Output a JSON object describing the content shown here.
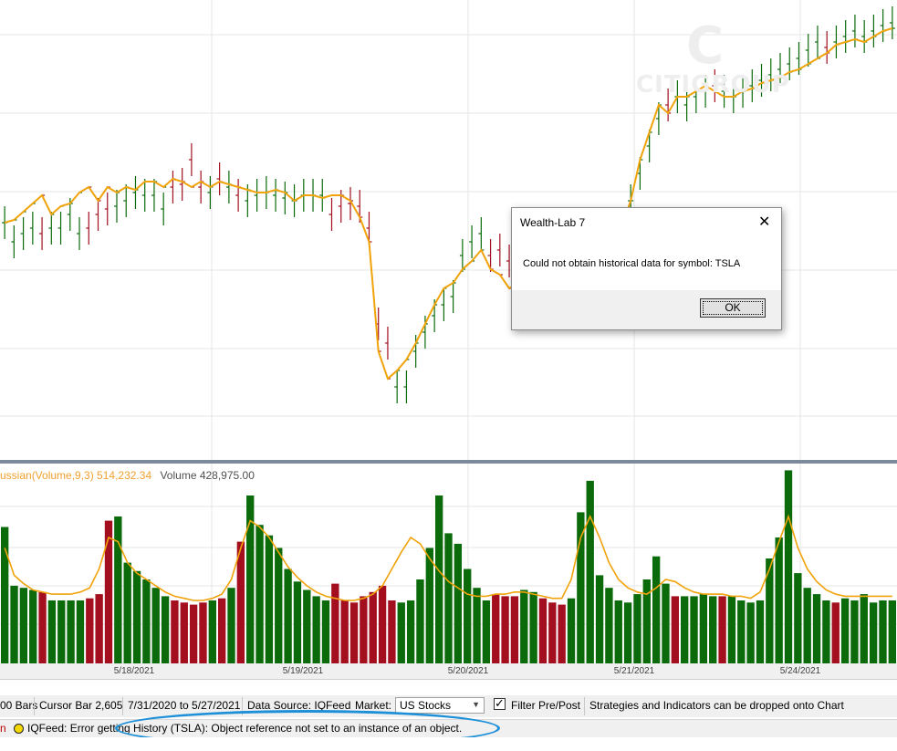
{
  "colors": {
    "up_bar": "#0b6b0b",
    "down_bar": "#a30f1f",
    "smooth_line": "#f0a30a",
    "pane_separator": "#7d8a99",
    "grid": "#e6e6e6",
    "annotation_ellipse": "#1e90d8"
  },
  "watermark": {
    "letter": "C",
    "name": "CITIGROUP"
  },
  "volume_pane": {
    "indicator_label": "ussian(Volume,9,3) 514,232.34",
    "volume_label": "Volume 428,975.00"
  },
  "x_axis": {
    "ticks": [
      "5/18/2021",
      "5/19/2021",
      "5/20/2021",
      "5/21/2021",
      "5/24/2021"
    ]
  },
  "chart_data": {
    "type": "bar",
    "price_bars": [
      {
        "h": 0.22,
        "c": 0.22,
        "up": true
      },
      {
        "h": 0.15,
        "c": 0.23,
        "up": true
      },
      {
        "h": 0.18,
        "c": 0.26,
        "up": true
      },
      {
        "h": 0.2,
        "c": 0.29,
        "up": true
      },
      {
        "h": 0.18,
        "c": 0.32,
        "up": false
      },
      {
        "h": 0.2,
        "c": 0.25,
        "up": true
      },
      {
        "h": 0.2,
        "c": 0.28,
        "up": true
      },
      {
        "h": 0.25,
        "c": 0.29,
        "up": true
      },
      {
        "h": 0.18,
        "c": 0.33,
        "up": true
      },
      {
        "h": 0.2,
        "c": 0.35,
        "up": false
      },
      {
        "h": 0.25,
        "c": 0.3,
        "up": false
      },
      {
        "h": 0.27,
        "c": 0.35,
        "up": false
      },
      {
        "h": 0.28,
        "c": 0.33,
        "up": true
      },
      {
        "h": 0.3,
        "c": 0.35,
        "up": true
      },
      {
        "h": 0.33,
        "c": 0.34,
        "up": true
      },
      {
        "h": 0.32,
        "c": 0.37,
        "up": true
      },
      {
        "h": 0.32,
        "c": 0.37,
        "up": true
      },
      {
        "h": 0.27,
        "c": 0.35,
        "up": true
      },
      {
        "h": 0.35,
        "c": 0.38,
        "up": false
      },
      {
        "h": 0.36,
        "c": 0.37,
        "up": false
      },
      {
        "h": 0.45,
        "c": 0.35,
        "up": false
      },
      {
        "h": 0.35,
        "c": 0.37,
        "up": false
      },
      {
        "h": 0.33,
        "c": 0.35,
        "up": true
      },
      {
        "h": 0.38,
        "c": 0.37,
        "up": false
      },
      {
        "h": 0.35,
        "c": 0.36,
        "up": true
      },
      {
        "h": 0.32,
        "c": 0.35,
        "up": false
      },
      {
        "h": 0.3,
        "c": 0.34,
        "up": true
      },
      {
        "h": 0.32,
        "c": 0.33,
        "up": true
      },
      {
        "h": 0.33,
        "c": 0.33,
        "up": true
      },
      {
        "h": 0.32,
        "c": 0.34,
        "up": true
      },
      {
        "h": 0.31,
        "c": 0.33,
        "up": true
      },
      {
        "h": 0.3,
        "c": 0.3,
        "up": true
      },
      {
        "h": 0.32,
        "c": 0.32,
        "up": true
      },
      {
        "h": 0.32,
        "c": 0.32,
        "up": true
      },
      {
        "h": 0.32,
        "c": 0.31,
        "up": true
      },
      {
        "h": 0.25,
        "c": 0.32,
        "up": false
      },
      {
        "h": 0.28,
        "c": 0.32,
        "up": false
      },
      {
        "h": 0.29,
        "c": 0.3,
        "up": false
      },
      {
        "h": 0.28,
        "c": 0.24,
        "up": false
      },
      {
        "h": 0.2,
        "c": 0.15,
        "up": false
      },
      {
        "h": -0.15,
        "c": -0.25,
        "up": false
      },
      {
        "h": -0.22,
        "c": -0.35,
        "up": false
      },
      {
        "h": -0.38,
        "c": -0.32,
        "up": true
      },
      {
        "h": -0.38,
        "c": -0.28,
        "up": true
      },
      {
        "h": -0.25,
        "c": -0.22,
        "up": true
      },
      {
        "h": -0.18,
        "c": -0.15,
        "up": true
      },
      {
        "h": -0.12,
        "c": -0.08,
        "up": true
      },
      {
        "h": -0.08,
        "c": -0.02,
        "up": true
      },
      {
        "h": -0.05,
        "c": 0.0,
        "up": true
      },
      {
        "h": 0.1,
        "c": 0.05,
        "up": true
      },
      {
        "h": 0.15,
        "c": 0.08,
        "up": true
      },
      {
        "h": 0.18,
        "c": 0.12,
        "up": true
      },
      {
        "h": 0.1,
        "c": 0.05,
        "up": false
      },
      {
        "h": 0.12,
        "c": 0.03,
        "up": false
      },
      {
        "h": 0.08,
        "c": -0.02,
        "up": false
      },
      {
        "h": 0.1,
        "c": 0.0,
        "up": true
      },
      {
        "h": 0.13,
        "c": 0.08,
        "up": true
      },
      {
        "h": 0.15,
        "c": 0.11,
        "up": false
      },
      {
        "h": 0.12,
        "c": 0.04,
        "up": false
      },
      {
        "h": 0.08,
        "c": -0.02,
        "up": false
      },
      {
        "h": 0.02,
        "c": -0.02,
        "up": true
      },
      {
        "h": 0.05,
        "c": 0.02,
        "up": true
      },
      {
        "h": 0.08,
        "c": 0.06,
        "up": true
      },
      {
        "h": 0.1,
        "c": 0.08,
        "up": true
      },
      {
        "h": 0.12,
        "c": 0.1,
        "up": true
      },
      {
        "h": 0.15,
        "c": 0.12,
        "up": true
      },
      {
        "h": 0.2,
        "c": 0.2,
        "up": true
      },
      {
        "h": 0.3,
        "c": 0.3,
        "up": true
      },
      {
        "h": 0.4,
        "c": 0.45,
        "up": true
      },
      {
        "h": 0.5,
        "c": 0.55,
        "up": true
      },
      {
        "h": 0.6,
        "c": 0.65,
        "up": true
      },
      {
        "h": 0.65,
        "c": 0.62,
        "up": false
      },
      {
        "h": 0.68,
        "c": 0.68,
        "up": true
      },
      {
        "h": 0.65,
        "c": 0.68,
        "up": true
      },
      {
        "h": 0.68,
        "c": 0.7,
        "up": true
      },
      {
        "h": 0.7,
        "c": 0.72,
        "up": true
      },
      {
        "h": 0.72,
        "c": 0.7,
        "up": false
      },
      {
        "h": 0.7,
        "c": 0.68,
        "up": true
      },
      {
        "h": 0.68,
        "c": 0.68,
        "up": true
      },
      {
        "h": 0.7,
        "c": 0.7,
        "up": true
      },
      {
        "h": 0.72,
        "c": 0.71,
        "up": true
      },
      {
        "h": 0.74,
        "c": 0.73,
        "up": true
      },
      {
        "h": 0.76,
        "c": 0.74,
        "up": true
      },
      {
        "h": 0.78,
        "c": 0.75,
        "up": true
      },
      {
        "h": 0.8,
        "c": 0.77,
        "up": true
      },
      {
        "h": 0.82,
        "c": 0.78,
        "up": true
      },
      {
        "h": 0.85,
        "c": 0.8,
        "up": true
      },
      {
        "h": 0.88,
        "c": 0.82,
        "up": true
      },
      {
        "h": 0.86,
        "c": 0.84,
        "up": false
      },
      {
        "h": 0.88,
        "c": 0.87,
        "up": true
      },
      {
        "h": 0.9,
        "c": 0.88,
        "up": true
      },
      {
        "h": 0.92,
        "c": 0.89,
        "up": true
      },
      {
        "h": 0.9,
        "c": 0.88,
        "up": true
      },
      {
        "h": 0.92,
        "c": 0.9,
        "up": true
      },
      {
        "h": 0.94,
        "c": 0.92,
        "up": true
      },
      {
        "h": 0.95,
        "c": 0.93,
        "up": true
      }
    ],
    "volume_values": [
      65,
      37,
      36,
      35,
      34,
      30,
      30,
      30,
      30,
      31,
      33,
      68,
      70,
      48,
      44,
      40,
      36,
      32,
      30,
      29,
      28,
      29,
      30,
      31,
      36,
      58,
      80,
      66,
      61,
      55,
      45,
      39,
      35,
      32,
      30,
      38,
      30,
      29,
      32,
      34,
      37,
      30,
      29,
      30,
      40,
      55,
      80,
      62,
      57,
      45,
      36,
      30,
      33,
      32,
      32,
      35,
      34,
      31,
      29,
      28,
      31,
      72,
      87,
      42,
      36,
      30,
      29,
      33,
      40,
      51,
      38,
      32,
      32,
      32,
      33,
      32,
      32,
      32,
      30,
      29,
      30,
      50,
      60,
      92,
      43,
      36,
      33,
      30,
      29,
      31,
      30,
      33,
      29,
      30,
      30
    ],
    "smooth_values": [
      55,
      42,
      38,
      35,
      34,
      33,
      33,
      33,
      34,
      36,
      45,
      60,
      58,
      48,
      43,
      40,
      37,
      34,
      32,
      31,
      30,
      30,
      31,
      33,
      40,
      55,
      68,
      65,
      60,
      53,
      46,
      41,
      37,
      34,
      32,
      31,
      30,
      30,
      31,
      33,
      37,
      45,
      53,
      60,
      57,
      50,
      44,
      39,
      36,
      33,
      32,
      32,
      33,
      33,
      34,
      34,
      33,
      32,
      31,
      31,
      40,
      60,
      70,
      60,
      48,
      40,
      36,
      34,
      33,
      36,
      40,
      39,
      36,
      34,
      33,
      33,
      33,
      32,
      32,
      31,
      34,
      45,
      58,
      70,
      55,
      45,
      39,
      35,
      33,
      32,
      32,
      32,
      32,
      32,
      32
    ]
  },
  "status_bar": {
    "bars": "00 Bars",
    "cursor": "Cursor Bar 2,605",
    "range": "7/31/2020 to 5/27/2021",
    "data_source": "Data Source: IQFeed",
    "market_label": "Market:",
    "market_value": "US Stocks",
    "filter_label": "Filter Pre/Post",
    "filter_checked": "✓",
    "hint": "Strategies and Indicators can be dropped onto Chart"
  },
  "log_bar": {
    "left_fragment": "n",
    "message": "IQFeed: Error getting History (TSLA): Object reference not set to an instance of an object."
  },
  "dialog": {
    "title": "Wealth-Lab 7",
    "close_glyph": "✕",
    "message": "Could not obtain historical data for symbol: TSLA",
    "ok_label": "OK"
  }
}
